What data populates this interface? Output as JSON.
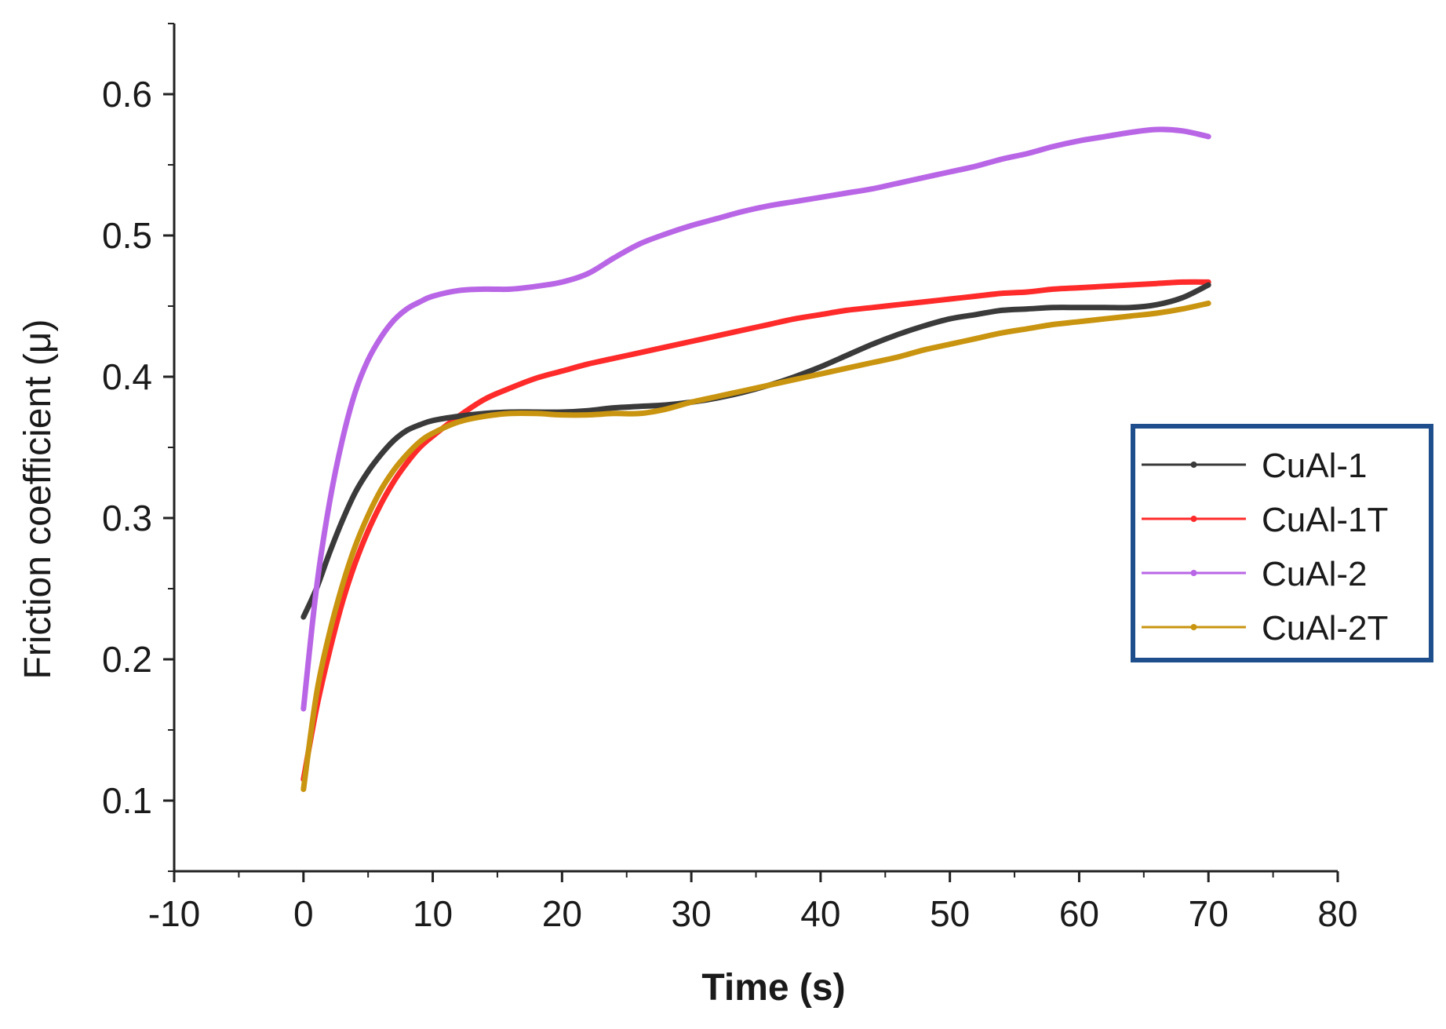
{
  "chart_data": {
    "type": "line",
    "title": "",
    "xlabel": "Time (s)",
    "ylabel": "Friction coefficient (μ)",
    "xlim": [
      -10,
      80
    ],
    "ylim": [
      0.05,
      0.65
    ],
    "x_ticks": [
      -10,
      0,
      10,
      20,
      30,
      40,
      50,
      60,
      70,
      80
    ],
    "x_tick_labels": [
      "-10",
      "0",
      "10",
      "20",
      "30",
      "40",
      "50",
      "60",
      "70",
      "80"
    ],
    "y_ticks": [
      0.1,
      0.2,
      0.3,
      0.4,
      0.5,
      0.6
    ],
    "y_tick_labels": [
      "0.1",
      "0.2",
      "0.3",
      "0.4",
      "0.5",
      "0.6"
    ],
    "grid": false,
    "legend_position": "right",
    "legend_border_color": "#1f4e8c",
    "series": [
      {
        "name": "CuAl-1",
        "color": "#3a3a3a",
        "x": [
          0,
          1,
          2,
          3,
          4,
          5,
          6,
          7,
          8,
          9,
          10,
          12,
          14,
          16,
          18,
          20,
          22,
          24,
          26,
          28,
          30,
          32,
          34,
          36,
          38,
          40,
          42,
          44,
          46,
          48,
          50,
          52,
          54,
          56,
          58,
          60,
          62,
          64,
          66,
          68,
          70
        ],
        "values": [
          0.23,
          0.25,
          0.275,
          0.298,
          0.318,
          0.333,
          0.345,
          0.355,
          0.362,
          0.366,
          0.369,
          0.372,
          0.374,
          0.375,
          0.375,
          0.375,
          0.376,
          0.378,
          0.379,
          0.38,
          0.382,
          0.385,
          0.389,
          0.394,
          0.4,
          0.407,
          0.415,
          0.423,
          0.43,
          0.436,
          0.441,
          0.444,
          0.447,
          0.448,
          0.449,
          0.449,
          0.449,
          0.449,
          0.451,
          0.456,
          0.465
        ]
      },
      {
        "name": "CuAl-1T",
        "color": "#ff2a2a",
        "x": [
          0,
          1,
          2,
          3,
          4,
          5,
          6,
          7,
          8,
          9,
          10,
          12,
          14,
          16,
          18,
          20,
          22,
          24,
          26,
          28,
          30,
          32,
          34,
          36,
          38,
          40,
          42,
          44,
          46,
          48,
          50,
          52,
          54,
          56,
          58,
          60,
          62,
          64,
          66,
          68,
          70
        ],
        "values": [
          0.115,
          0.165,
          0.205,
          0.24,
          0.268,
          0.291,
          0.31,
          0.326,
          0.339,
          0.35,
          0.358,
          0.372,
          0.384,
          0.392,
          0.399,
          0.404,
          0.409,
          0.413,
          0.417,
          0.421,
          0.425,
          0.429,
          0.433,
          0.437,
          0.441,
          0.444,
          0.447,
          0.449,
          0.451,
          0.453,
          0.455,
          0.457,
          0.459,
          0.46,
          0.462,
          0.463,
          0.464,
          0.465,
          0.466,
          0.467,
          0.467
        ]
      },
      {
        "name": "CuAl-2",
        "color": "#b966e6",
        "x": [
          0,
          1,
          2,
          3,
          4,
          5,
          6,
          7,
          8,
          9,
          10,
          12,
          14,
          16,
          18,
          20,
          22,
          24,
          26,
          28,
          30,
          32,
          34,
          36,
          38,
          40,
          42,
          44,
          46,
          48,
          50,
          52,
          54,
          56,
          58,
          60,
          62,
          64,
          66,
          68,
          70
        ],
        "values": [
          0.165,
          0.25,
          0.31,
          0.355,
          0.389,
          0.412,
          0.428,
          0.44,
          0.448,
          0.453,
          0.457,
          0.461,
          0.462,
          0.462,
          0.464,
          0.467,
          0.473,
          0.484,
          0.494,
          0.501,
          0.507,
          0.512,
          0.517,
          0.521,
          0.524,
          0.527,
          0.53,
          0.533,
          0.537,
          0.541,
          0.545,
          0.549,
          0.554,
          0.558,
          0.563,
          0.567,
          0.57,
          0.573,
          0.575,
          0.574,
          0.57
        ]
      },
      {
        "name": "CuAl-2T",
        "color": "#c9940f",
        "x": [
          0,
          1,
          2,
          3,
          4,
          5,
          6,
          7,
          8,
          9,
          10,
          12,
          14,
          16,
          18,
          20,
          22,
          24,
          26,
          28,
          30,
          32,
          34,
          36,
          38,
          40,
          42,
          44,
          46,
          48,
          50,
          52,
          54,
          56,
          58,
          60,
          62,
          64,
          66,
          68,
          70
        ],
        "values": [
          0.108,
          0.175,
          0.218,
          0.252,
          0.28,
          0.302,
          0.32,
          0.334,
          0.345,
          0.354,
          0.36,
          0.368,
          0.372,
          0.374,
          0.374,
          0.373,
          0.373,
          0.374,
          0.374,
          0.377,
          0.382,
          0.386,
          0.39,
          0.394,
          0.398,
          0.402,
          0.406,
          0.41,
          0.414,
          0.419,
          0.423,
          0.427,
          0.431,
          0.434,
          0.437,
          0.439,
          0.441,
          0.443,
          0.445,
          0.448,
          0.452
        ]
      }
    ]
  }
}
